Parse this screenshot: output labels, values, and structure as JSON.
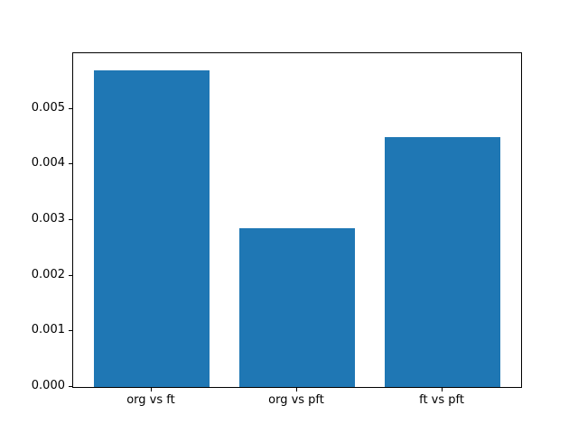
{
  "chart_data": {
    "type": "bar",
    "title": "",
    "xlabel": "",
    "ylabel": "",
    "categories": [
      "org vs ft",
      "org vs pft",
      "ft vs pft"
    ],
    "values": [
      0.0057,
      0.00285,
      0.0045
    ],
    "ylim": [
      0,
      0.006
    ],
    "yticks": [
      "0.000",
      "0.001",
      "0.002",
      "0.003",
      "0.004",
      "0.005"
    ],
    "ytick_values": [
      0,
      0.001,
      0.002,
      0.003,
      0.004,
      0.005
    ],
    "bar_color": "#1f77b4",
    "background_color": "#ffffff",
    "axis_color": "#000000",
    "grid": false,
    "legend": null
  }
}
